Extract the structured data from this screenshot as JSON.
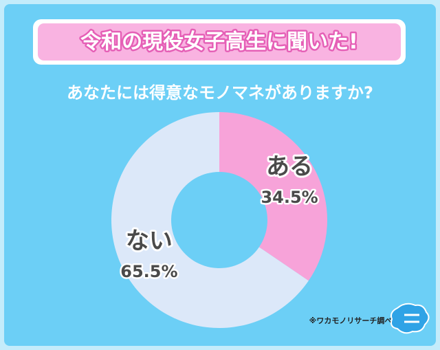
{
  "chart_data": {
    "type": "donut",
    "title": "令和の現役女子高生に聞いた!",
    "subtitle": "あなたには得意なモノマネがありますか?",
    "categories": [
      "ある",
      "ない"
    ],
    "values": [
      34.5,
      65.5
    ],
    "value_labels": [
      "34.5%",
      "65.5%"
    ],
    "colors": [
      "#f7a3d9",
      "#dce8f9"
    ],
    "source": "※ワカモノリサーチ調べ"
  }
}
